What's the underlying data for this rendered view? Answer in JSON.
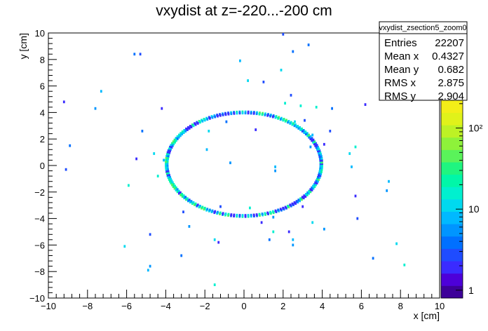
{
  "chart_data": {
    "type": "heatmap",
    "title": "vxydist at z=-220...-200 cm",
    "xlabel": "x [cm]",
    "ylabel": "y [cm]",
    "xlim": [
      -10,
      10
    ],
    "ylim": [
      -10,
      10
    ],
    "x_tick_labels": [
      "−10",
      "−8",
      "−6",
      "−4",
      "−2",
      "0",
      "2",
      "4",
      "6",
      "8",
      "10"
    ],
    "y_tick_labels": [
      "−10",
      "−8",
      "−6",
      "−4",
      "−2",
      "0",
      "2",
      "4",
      "6",
      "8",
      "10"
    ],
    "z_scale": "log",
    "z_tick_labels": [
      "1",
      "10",
      "10²"
    ],
    "ring": {
      "center": [
        0.0,
        0.1
      ],
      "radius_x": 4.0,
      "radius_y": 3.95
    },
    "scattered_points": [
      [
        -9.2,
        4.8
      ],
      [
        -9.1,
        -0.3
      ],
      [
        -8.9,
        1.5
      ],
      [
        -7.6,
        4.3
      ],
      [
        -7.3,
        5.6
      ],
      [
        -6.1,
        -6.1
      ],
      [
        -5.9,
        -1.5
      ],
      [
        -5.5,
        0.5
      ],
      [
        -5.3,
        8.4
      ],
      [
        -5.2,
        2.6
      ],
      [
        -4.8,
        -7.6
      ],
      [
        -4.9,
        -7.9
      ],
      [
        -4.6,
        0.9
      ],
      [
        -4.4,
        -0.8
      ],
      [
        -4.2,
        4.3
      ],
      [
        -4.8,
        -5.2
      ],
      [
        -3.2,
        -6.8
      ],
      [
        -2.8,
        -4.6
      ],
      [
        -1.9,
        1.2
      ],
      [
        -1.5,
        -5.6
      ],
      [
        -1.5,
        -9.0
      ],
      [
        -1.3,
        -5.8
      ],
      [
        -1.2,
        -3.1
      ],
      [
        -0.9,
        3.3
      ],
      [
        -0.7,
        0.2
      ],
      [
        -0.2,
        7.9
      ],
      [
        0.2,
        6.4
      ],
      [
        0.3,
        -3.2
      ],
      [
        0.6,
        2.7
      ],
      [
        1.0,
        6.3
      ],
      [
        1.3,
        -5.6
      ],
      [
        1.5,
        -3.9
      ],
      [
        1.6,
        -0.1
      ],
      [
        1.9,
        7.2
      ],
      [
        1.5,
        -5.0
      ],
      [
        2.3,
        -5.0
      ],
      [
        2.4,
        5.3
      ],
      [
        2.5,
        8.6
      ],
      [
        2.5,
        -6.0
      ],
      [
        2.5,
        -5.6
      ],
      [
        2.6,
        3.3
      ],
      [
        2.9,
        4.5
      ],
      [
        3.0,
        -3.1
      ],
      [
        3.1,
        3.4
      ],
      [
        3.3,
        9.1
      ],
      [
        3.4,
        1.4
      ],
      [
        3.5,
        2.3
      ],
      [
        3.5,
        -4.3
      ],
      [
        3.7,
        4.4
      ],
      [
        4.1,
        1.6
      ],
      [
        4.4,
        2.6
      ],
      [
        4.5,
        4.3
      ],
      [
        4.1,
        -4.8
      ],
      [
        5.5,
        -0.1
      ],
      [
        5.4,
        0.9
      ],
      [
        5.7,
        1.4
      ],
      [
        5.7,
        -2.3
      ],
      [
        5.8,
        -4.0
      ],
      [
        6.6,
        -7.0
      ],
      [
        7.3,
        -1.9
      ],
      [
        7.4,
        -1.2
      ],
      [
        7.8,
        -5.9
      ],
      [
        8.2,
        -7.5
      ],
      [
        6.2,
        4.6
      ],
      [
        2.0,
        9.9
      ],
      [
        -5.6,
        8.4
      ],
      [
        1.6,
        -0.4
      ],
      [
        -4.1,
        0.4
      ],
      [
        -1.8,
        2.6
      ],
      [
        2.1,
        4.7
      ],
      [
        0.9,
        -4.3
      ],
      [
        -3.1,
        -3.5
      ]
    ]
  },
  "stats_box": {
    "title": "vxydist_zsection5_zoom0",
    "rows": [
      {
        "label": "Entries",
        "value": "22207"
      },
      {
        "label": "Mean x",
        "value": "0.4327"
      },
      {
        "label": "Mean y",
        "value": "0.682"
      },
      {
        "label": "RMS x",
        "value": "2.875"
      },
      {
        "label": "RMS y",
        "value": "2.904"
      }
    ]
  },
  "colors": {
    "palette": [
      "#3d0099",
      "#4d00d9",
      "#3a2bff",
      "#1f4cff",
      "#0070ff",
      "#0095ff",
      "#00b9ff",
      "#00d9ef",
      "#00f0cf",
      "#00f7a8",
      "#1ff580",
      "#5af35a",
      "#8ef23a",
      "#bdf225",
      "#e0f21a",
      "#f3ee18"
    ]
  }
}
